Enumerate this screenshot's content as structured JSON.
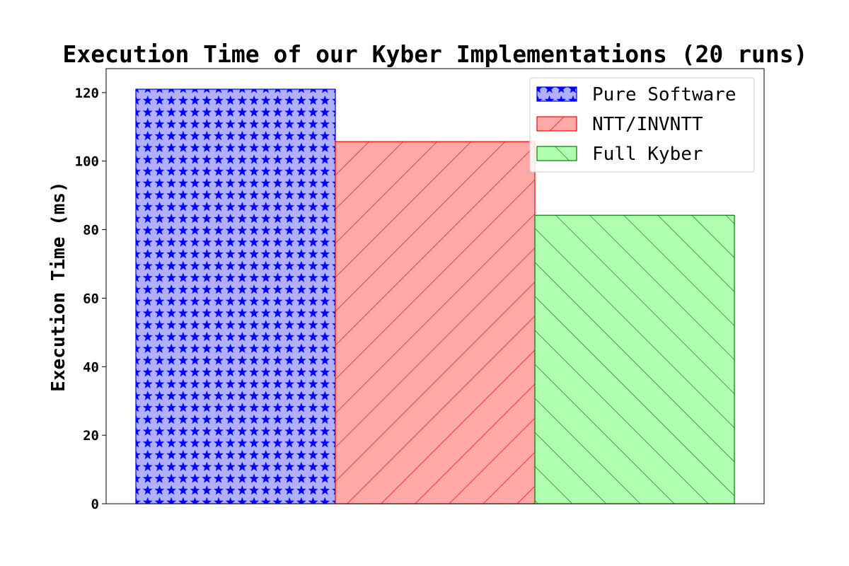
{
  "chart_data": {
    "type": "bar",
    "title": "Execution Time of our Kyber Implementations (20 runs)",
    "xlabel": "",
    "ylabel": "Execution Time (ms)",
    "ylim": [
      0,
      127
    ],
    "yticks": [
      0,
      20,
      40,
      60,
      80,
      100,
      120
    ],
    "grid": false,
    "legend_position": "top-right",
    "series": [
      {
        "name": "Pure Software",
        "value": 121,
        "fill_color": "#b0b0ff",
        "edge_color": "#0000ff",
        "hatch": "stars"
      },
      {
        "name": "NTT/INVNTT",
        "value": 105.7,
        "fill_color": "#ffa8a8",
        "edge_color": "#ff0000",
        "hatch": "forward-diagonal"
      },
      {
        "name": "Full Kyber",
        "value": 84.2,
        "fill_color": "#b0ffb0",
        "edge_color": "#008000",
        "hatch": "back-diagonal"
      }
    ]
  }
}
